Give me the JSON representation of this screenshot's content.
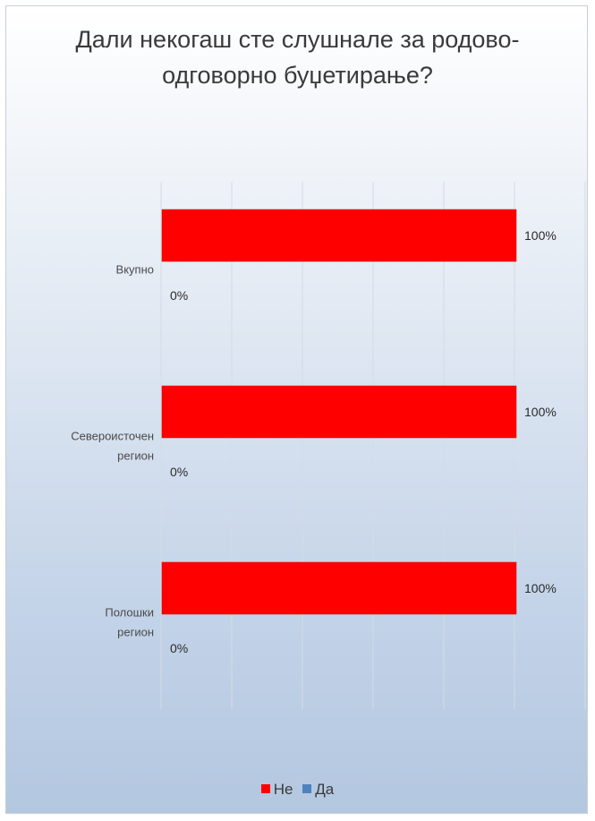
{
  "chart_data": {
    "type": "bar",
    "orientation": "horizontal",
    "title": "Дали некогаш сте слушнале за родово-одговорно буџетирање?",
    "categories": [
      "Вкупно",
      "Североисточен регион",
      "Полошки регион"
    ],
    "series": [
      {
        "name": "Не",
        "values": [
          100,
          100,
          100
        ],
        "labels": [
          "100%",
          "100%",
          "100%"
        ],
        "color": "#ff0000"
      },
      {
        "name": "Да",
        "values": [
          0,
          0,
          0
        ],
        "labels": [
          "0%",
          "0%",
          "0%"
        ],
        "color": "#4f81bd"
      }
    ],
    "xlim": [
      0,
      100
    ],
    "grid": true,
    "legend_position": "bottom"
  },
  "colors": {
    "no": "#ff0000",
    "yes": "#4f81bd",
    "gridline": "#d4dbe5"
  }
}
